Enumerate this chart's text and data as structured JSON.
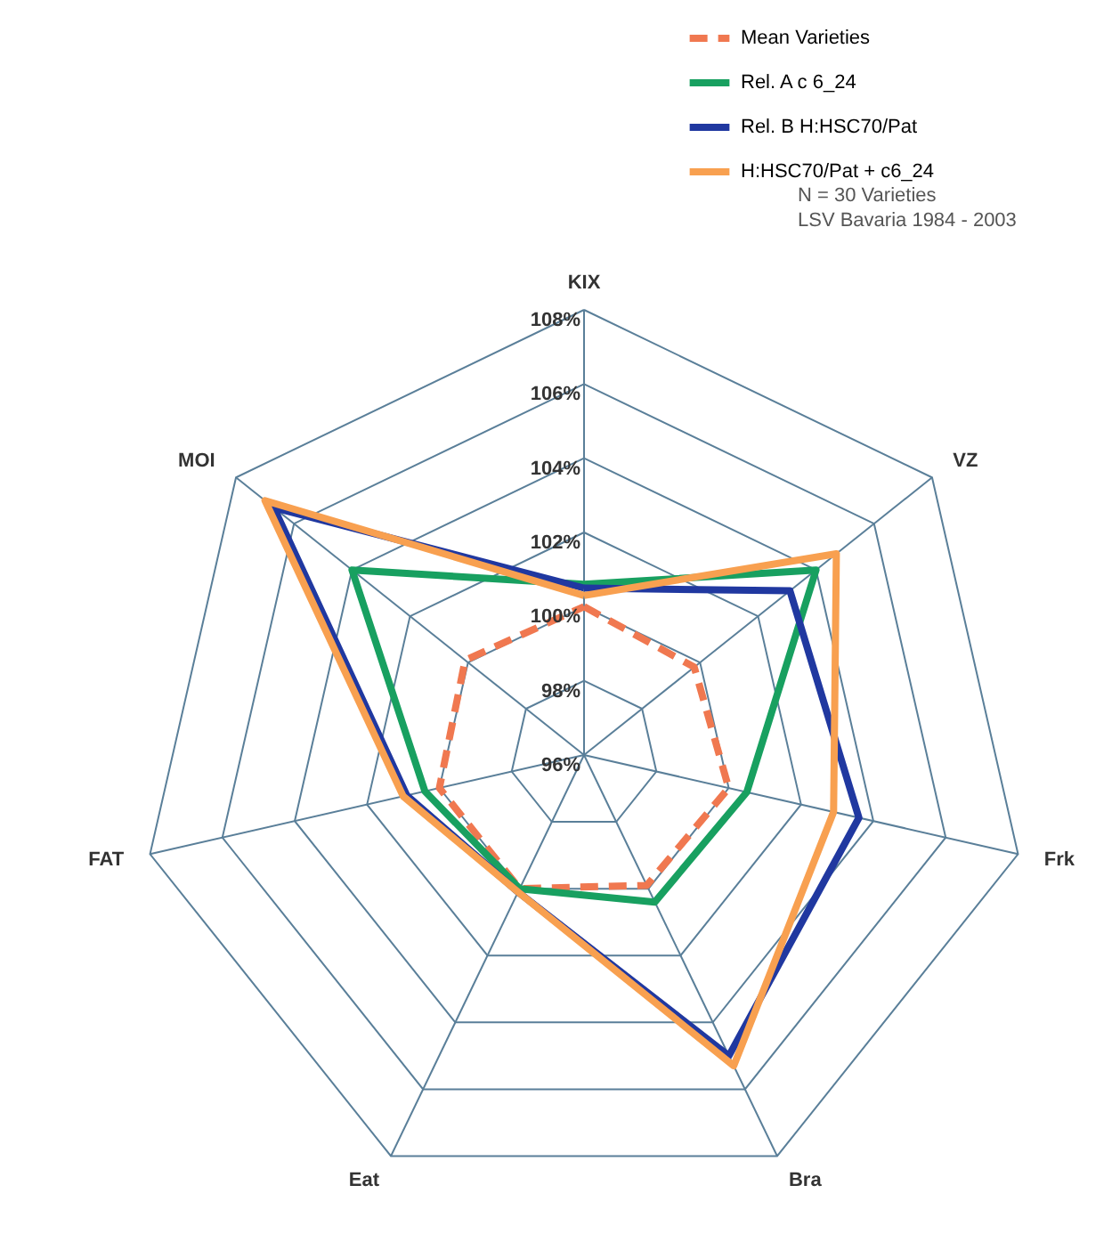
{
  "chart_data": {
    "type": "radar",
    "categories": [
      "KIX",
      "VZ",
      "Frk",
      "Bra",
      "Eat",
      "FAT",
      "MOI"
    ],
    "ylim": [
      96,
      108
    ],
    "yticks": [
      {
        "value": 96,
        "label": "96%"
      },
      {
        "value": 98,
        "label": "98%"
      },
      {
        "value": 100,
        "label": "100%"
      },
      {
        "value": 102,
        "label": "102%"
      },
      {
        "value": 104,
        "label": "104%"
      },
      {
        "value": 106,
        "label": "106%"
      },
      {
        "value": 108,
        "label": "108%"
      }
    ],
    "series": [
      {
        "name": "Mean Varieties",
        "color": "#f07850",
        "line_style": "dashed",
        "values": [
          100,
          99.8,
          100,
          99.9,
          100,
          100,
          100.1
        ]
      },
      {
        "name": "Rel. A c 6_24",
        "color": "#18a060",
        "line_style": "solid",
        "values": [
          100.6,
          104,
          100.5,
          100.4,
          100,
          100.4,
          104
        ]
      },
      {
        "name": "Rel. B H:HSC70/Pat",
        "color": "#2038a0",
        "line_style": "solid",
        "values": [
          100.5,
          103.1,
          103.6,
          105,
          100.1,
          100.9,
          106.7
        ]
      },
      {
        "name": "H:HSC70/Pat + c6_24",
        "color": "#f8a050",
        "line_style": "solid",
        "values": [
          100.3,
          104.7,
          102.9,
          105.3,
          100.1,
          101,
          107
        ]
      }
    ],
    "grid": true,
    "legend": "top right",
    "annotations": [
      "N = 30 Varieties",
      "LSV Bavaria 1984 - 2003"
    ]
  }
}
